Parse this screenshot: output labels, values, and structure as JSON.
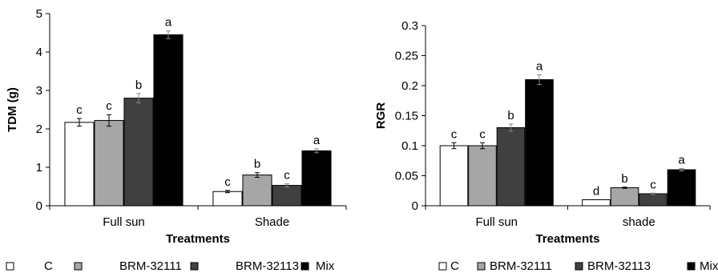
{
  "chart_data": [
    {
      "type": "bar",
      "title": "",
      "xlabel": "Treatments",
      "ylabel": "TDM (g)",
      "ylim": [
        0,
        5
      ],
      "yticks": [
        "0",
        "1",
        "2",
        "3",
        "4",
        "5"
      ],
      "categories": [
        "Full sun",
        "Shade"
      ],
      "error_bars": true,
      "grid": false,
      "legend_position": "bottom",
      "series": [
        {
          "name": "C",
          "color": "#ffffff",
          "values": [
            2.17,
            0.37
          ],
          "errors": [
            0.1,
            0.03
          ],
          "letters": [
            "c",
            "c"
          ]
        },
        {
          "name": "BRM-32111",
          "color": "#a6a6a6",
          "values": [
            2.22,
            0.8
          ],
          "errors": [
            0.15,
            0.06
          ],
          "letters": [
            "c",
            "b"
          ]
        },
        {
          "name": "BRM-32113",
          "color": "#404040",
          "values": [
            2.8,
            0.53
          ],
          "errors": [
            0.12,
            0.04
          ],
          "letters": [
            "b",
            "c"
          ]
        },
        {
          "name": "Mix",
          "color": "#000000",
          "values": [
            4.45,
            1.43
          ],
          "errors": [
            0.1,
            0.05
          ],
          "letters": [
            "a",
            "a"
          ]
        }
      ]
    },
    {
      "type": "bar",
      "title": "",
      "xlabel": "Treatments",
      "ylabel": "RGR",
      "ylim": [
        0,
        0.3
      ],
      "yticks": [
        "0",
        "0.05",
        "0.1",
        "0.15",
        "0.2",
        "0.25",
        "0.3"
      ],
      "categories": [
        "Full sun",
        "shade"
      ],
      "error_bars": true,
      "grid": false,
      "legend_position": "bottom",
      "series": [
        {
          "name": "C",
          "color": "#ffffff",
          "values": [
            0.1,
            0.01
          ],
          "errors": [
            0.005,
            0.0
          ],
          "letters": [
            "c",
            "d"
          ]
        },
        {
          "name": "BRM-32111",
          "color": "#a6a6a6",
          "values": [
            0.1,
            0.03
          ],
          "errors": [
            0.005,
            0.001
          ],
          "letters": [
            "c",
            "b"
          ]
        },
        {
          "name": "BRM-32113",
          "color": "#404040",
          "values": [
            0.13,
            0.02
          ],
          "errors": [
            0.006,
            0.001
          ],
          "letters": [
            "b",
            "c"
          ]
        },
        {
          "name": "Mix",
          "color": "#000000",
          "values": [
            0.21,
            0.06
          ],
          "errors": [
            0.008,
            0.002
          ],
          "letters": [
            "a",
            "a"
          ]
        }
      ]
    }
  ]
}
